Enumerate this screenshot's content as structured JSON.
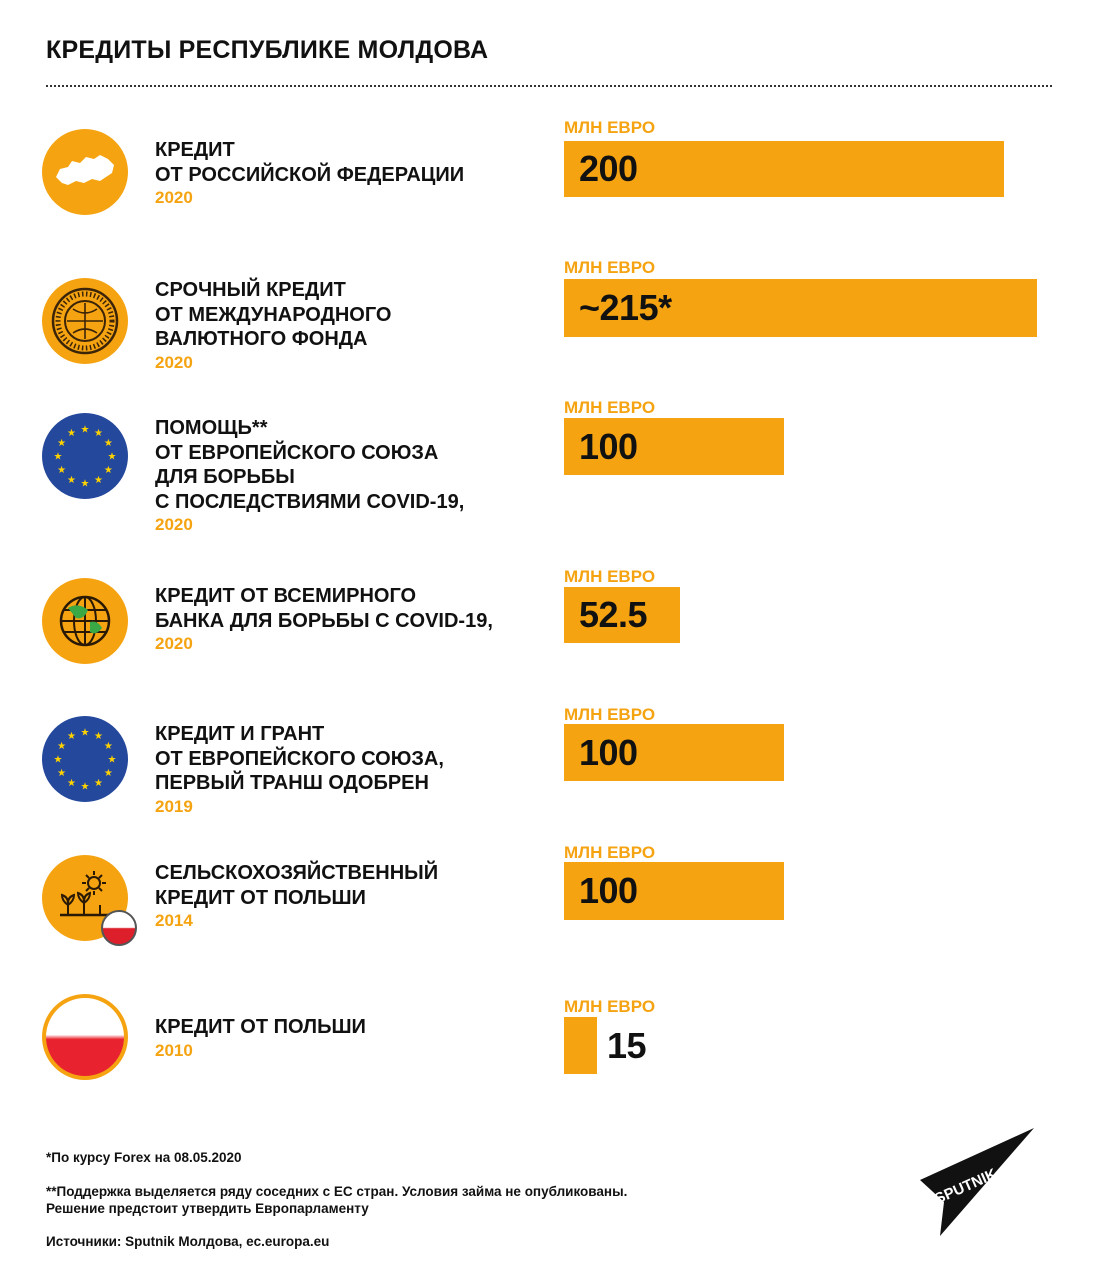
{
  "title": "КРЕДИТЫ РЕСПУБЛИКЕ МОЛДОВА",
  "colors": {
    "accent": "#f5a311",
    "eu_blue": "#24489c",
    "poland_red": "#e8232f",
    "text": "#111111"
  },
  "chart_data": {
    "type": "bar",
    "title": "КРЕДИТЫ РЕСПУБЛИКЕ МОЛДОВА",
    "unit": "МЛН ЕВРО",
    "xlim": [
      0,
      215
    ],
    "entries": [
      {
        "label_lines": [
          "КРЕДИТ",
          "ОТ РОССИЙСКОЙ ФЕДЕРАЦИИ"
        ],
        "year": "2020",
        "value": 200,
        "display": "200",
        "icon": "russia-map-icon"
      },
      {
        "label_lines": [
          "СРОЧНЫЙ КРЕДИТ",
          "ОТ МЕЖДУНАРОДНОГО",
          "ВАЛЮТНОГО ФОНДА"
        ],
        "year": "2020",
        "value": 215,
        "display": "~215*",
        "icon": "imf-seal-icon"
      },
      {
        "label_lines": [
          "ПОМОЩЬ**",
          "ОТ ЕВРОПЕЙСКОГО СОЮЗА",
          "ДЛЯ БОРЬБЫ",
          "С ПОСЛЕДСТВИЯМИ COVID-19,"
        ],
        "year": "2020",
        "value": 100,
        "display": "100",
        "icon": "eu-flag-icon"
      },
      {
        "label_lines": [
          "КРЕДИТ ОТ ВСЕМИРНОГО",
          "БАНКА ДЛЯ БОРЬБЫ С COVID-19,"
        ],
        "year": "2020",
        "value": 52.5,
        "display": "52.5",
        "icon": "world-bank-globe-icon"
      },
      {
        "label_lines": [
          "КРЕДИТ И ГРАНТ",
          "ОТ ЕВРОПЕЙСКОГО СОЮЗА,",
          "ПЕРВЫЙ ТРАНШ ОДОБРЕН"
        ],
        "year": "2019",
        "value": 100,
        "display": "100",
        "icon": "eu-flag-icon"
      },
      {
        "label_lines": [
          "СЕЛЬСКОХОЗЯЙСТВЕННЫЙ",
          "КРЕДИТ ОТ ПОЛЬШИ"
        ],
        "year": "2014",
        "value": 100,
        "display": "100",
        "icon": "agriculture-icon"
      },
      {
        "label_lines": [
          "КРЕДИТ ОТ ПОЛЬШИ"
        ],
        "year": "2010",
        "value": 15,
        "display": "15",
        "icon": "poland-flag-icon"
      }
    ]
  },
  "footnotes": {
    "forex": "*По курсу Forex на 08.05.2020",
    "support_line1": "**Поддержка выделяется ряду соседних с ЕС стран. Условия займа не опубликованы.",
    "support_line2": "Решение предстоит утвердить Европарламенту",
    "sources": "Источники: Sputnik Молдова, ec.europa.eu"
  },
  "logo": {
    "text": "SPUTNIK"
  }
}
